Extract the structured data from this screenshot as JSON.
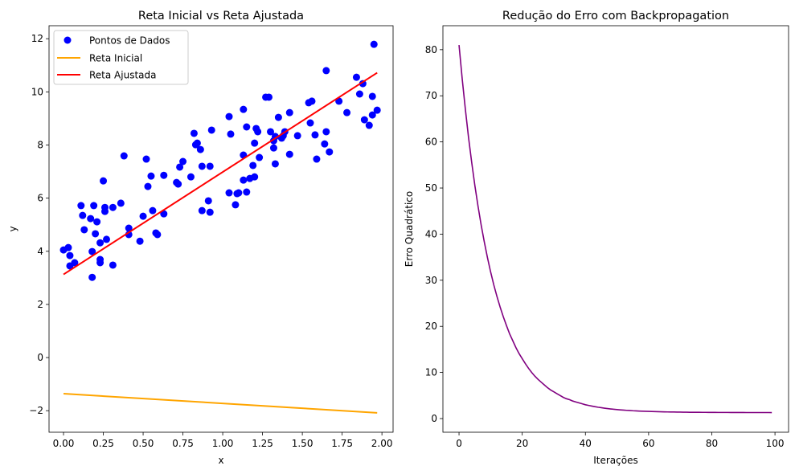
{
  "chart_data": [
    {
      "type": "scatter",
      "title": "Reta Inicial vs Reta Ajustada",
      "xlabel": "x",
      "ylabel": "y",
      "xlim": [
        -0.091,
        2.07
      ],
      "ylim": [
        -2.81,
        12.49
      ],
      "xticks": [
        0,
        0.25,
        0.5,
        0.75,
        1.0,
        1.25,
        1.5,
        1.75,
        2.0
      ],
      "xtick_labels": [
        "0.00",
        "0.25",
        "0.50",
        "0.75",
        "1.00",
        "1.25",
        "1.50",
        "1.75",
        "2.00"
      ],
      "yticks": [
        -2,
        0,
        2,
        4,
        6,
        8,
        10,
        12
      ],
      "ytick_labels": [
        "−2",
        "0",
        "2",
        "4",
        "6",
        "8",
        "10",
        "12"
      ],
      "legend_position": "upper-left",
      "legend": [
        "Pontos de Dados",
        "Reta Inicial",
        "Reta Ajustada"
      ],
      "colors": {
        "points": "#0000ff",
        "initial": "#ffa500",
        "fitted": "#ff0000"
      },
      "points": [
        [
          0.0,
          4.05
        ],
        [
          0.03,
          4.14
        ],
        [
          0.04,
          3.84
        ],
        [
          0.04,
          3.45
        ],
        [
          0.07,
          3.57
        ],
        [
          0.11,
          5.72
        ],
        [
          0.12,
          5.35
        ],
        [
          0.13,
          4.81
        ],
        [
          0.17,
          5.23
        ],
        [
          0.18,
          3.99
        ],
        [
          0.19,
          5.72
        ],
        [
          0.18,
          3.02
        ],
        [
          0.2,
          4.66
        ],
        [
          0.21,
          5.11
        ],
        [
          0.23,
          4.32
        ],
        [
          0.23,
          3.57
        ],
        [
          0.23,
          3.69
        ],
        [
          0.25,
          6.65
        ],
        [
          0.26,
          5.65
        ],
        [
          0.26,
          5.5
        ],
        [
          0.27,
          4.45
        ],
        [
          0.31,
          3.48
        ],
        [
          0.31,
          5.65
        ],
        [
          0.36,
          5.81
        ],
        [
          0.38,
          7.59
        ],
        [
          0.41,
          4.87
        ],
        [
          0.41,
          4.63
        ],
        [
          0.48,
          4.38
        ],
        [
          0.5,
          5.32
        ],
        [
          0.52,
          7.47
        ],
        [
          0.53,
          6.44
        ],
        [
          0.55,
          6.83
        ],
        [
          0.56,
          5.53
        ],
        [
          0.58,
          4.69
        ],
        [
          0.59,
          4.63
        ],
        [
          0.63,
          6.86
        ],
        [
          0.63,
          5.41
        ],
        [
          0.71,
          6.59
        ],
        [
          0.72,
          6.53
        ],
        [
          0.73,
          7.17
        ],
        [
          0.75,
          7.38
        ],
        [
          0.8,
          6.8
        ],
        [
          0.82,
          8.44
        ],
        [
          0.83,
          8.01
        ],
        [
          0.84,
          8.07
        ],
        [
          0.86,
          7.83
        ],
        [
          0.87,
          7.2
        ],
        [
          0.87,
          5.53
        ],
        [
          0.91,
          5.9
        ],
        [
          0.92,
          5.47
        ],
        [
          0.92,
          7.2
        ],
        [
          0.93,
          8.56
        ],
        [
          1.04,
          9.07
        ],
        [
          1.04,
          6.2
        ],
        [
          1.05,
          8.41
        ],
        [
          1.08,
          5.75
        ],
        [
          1.09,
          6.17
        ],
        [
          1.1,
          6.2
        ],
        [
          1.13,
          7.62
        ],
        [
          1.13,
          9.34
        ],
        [
          1.13,
          6.68
        ],
        [
          1.15,
          8.68
        ],
        [
          1.15,
          6.23
        ],
        [
          1.17,
          6.74
        ],
        [
          1.19,
          7.23
        ],
        [
          1.2,
          8.07
        ],
        [
          1.2,
          6.8
        ],
        [
          1.21,
          8.62
        ],
        [
          1.22,
          8.5
        ],
        [
          1.23,
          7.53
        ],
        [
          1.27,
          9.8
        ],
        [
          1.29,
          9.8
        ],
        [
          1.3,
          8.5
        ],
        [
          1.32,
          8.16
        ],
        [
          1.32,
          7.89
        ],
        [
          1.33,
          7.29
        ],
        [
          1.33,
          8.32
        ],
        [
          1.35,
          9.04
        ],
        [
          1.37,
          8.26
        ],
        [
          1.38,
          8.35
        ],
        [
          1.39,
          8.5
        ],
        [
          1.42,
          9.22
        ],
        [
          1.42,
          7.65
        ],
        [
          1.47,
          8.35
        ],
        [
          1.54,
          9.59
        ],
        [
          1.56,
          9.65
        ],
        [
          1.55,
          8.83
        ],
        [
          1.58,
          8.38
        ],
        [
          1.59,
          7.47
        ],
        [
          1.64,
          8.04
        ],
        [
          1.65,
          8.5
        ],
        [
          1.65,
          10.8
        ],
        [
          1.67,
          7.74
        ],
        [
          1.73,
          9.65
        ],
        [
          1.78,
          9.22
        ],
        [
          1.84,
          10.55
        ],
        [
          1.86,
          9.92
        ],
        [
          1.88,
          10.31
        ],
        [
          1.89,
          8.95
        ],
        [
          1.92,
          8.74
        ],
        [
          1.94,
          9.83
        ],
        [
          1.94,
          9.13
        ],
        [
          1.95,
          11.79
        ],
        [
          1.97,
          9.31
        ]
      ],
      "initial_line": [
        [
          0.0,
          -1.36
        ],
        [
          1.97,
          -2.08
        ]
      ],
      "fitted_line": [
        [
          0.0,
          3.13
        ],
        [
          1.97,
          10.72
        ]
      ]
    },
    {
      "type": "line",
      "title": "Redução do Erro com Backpropagation",
      "xlabel": "Iterações",
      "ylabel": "Erro Quadrático",
      "xlim": [
        -5.1,
        104.3
      ],
      "ylim": [
        -2.96,
        85.2
      ],
      "xticks": [
        0,
        20,
        40,
        60,
        80,
        100
      ],
      "xtick_labels": [
        "0",
        "20",
        "40",
        "60",
        "80",
        "100"
      ],
      "yticks": [
        0,
        10,
        20,
        30,
        40,
        50,
        60,
        70,
        80
      ],
      "ytick_labels": [
        "0",
        "10",
        "20",
        "30",
        "40",
        "50",
        "60",
        "70",
        "80"
      ],
      "color": "#800080",
      "values": [
        81.0,
        73.7,
        67.1,
        61.0,
        55.6,
        50.6,
        46.1,
        42.0,
        38.3,
        34.9,
        31.8,
        29.0,
        26.5,
        24.2,
        22.1,
        20.2,
        18.4,
        16.9,
        15.4,
        14.1,
        13.0,
        11.9,
        10.9,
        10.0,
        9.2,
        8.5,
        7.9,
        7.3,
        6.7,
        6.2,
        5.8,
        5.4,
        5.0,
        4.6,
        4.3,
        4.1,
        3.8,
        3.6,
        3.4,
        3.2,
        3.0,
        2.85,
        2.71,
        2.58,
        2.46,
        2.36,
        2.26,
        2.17,
        2.09,
        2.02,
        1.95,
        1.89,
        1.84,
        1.79,
        1.75,
        1.7,
        1.67,
        1.63,
        1.6,
        1.58,
        1.55,
        1.53,
        1.51,
        1.49,
        1.47,
        1.45,
        1.44,
        1.43,
        1.42,
        1.41,
        1.4,
        1.39,
        1.38,
        1.37,
        1.37,
        1.36,
        1.36,
        1.35,
        1.35,
        1.34,
        1.34,
        1.34,
        1.33,
        1.33,
        1.33,
        1.33,
        1.32,
        1.32,
        1.32,
        1.32,
        1.32,
        1.31,
        1.31,
        1.31,
        1.31,
        1.31,
        1.31,
        1.31,
        1.31,
        1.3
      ]
    }
  ]
}
